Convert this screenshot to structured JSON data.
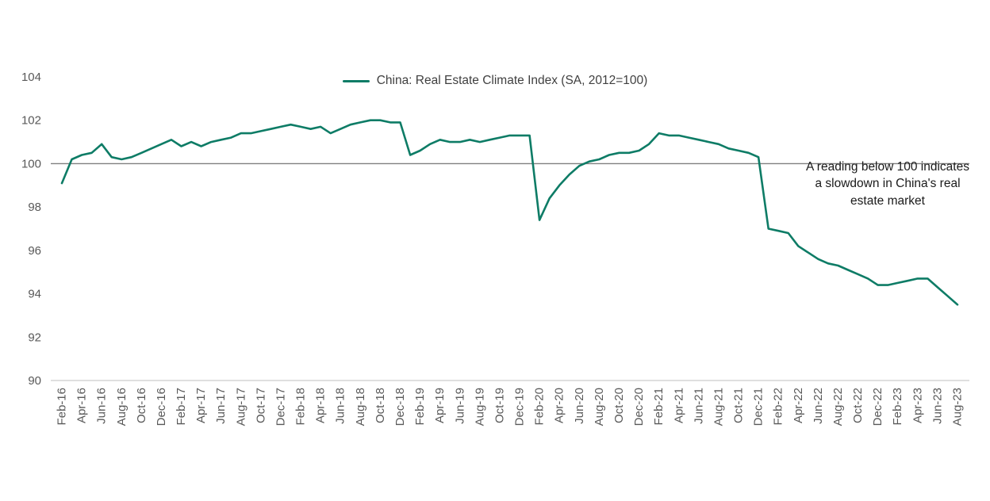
{
  "chart_data": {
    "type": "line",
    "legend": "China: Real Estate Climate Index (SA, 2012=100)",
    "annotation": "A reading below 100 indicates a slowdown in China's real estate market",
    "ylim": [
      90,
      104
    ],
    "ytick_step": 2,
    "xtick_step": 2,
    "reference_value": 100,
    "grid": "off",
    "legend_position": "top-center",
    "colors": {
      "line": "#0e7c66",
      "reference_line": "#7f7f7f",
      "axis": "#bfbfbf",
      "tick_text": "#595959"
    },
    "x": [
      "Feb-16",
      "Mar-16",
      "Apr-16",
      "May-16",
      "Jun-16",
      "Jul-16",
      "Aug-16",
      "Sep-16",
      "Oct-16",
      "Nov-16",
      "Dec-16",
      "Jan-17",
      "Feb-17",
      "Mar-17",
      "Apr-17",
      "May-17",
      "Jun-17",
      "Jul-17",
      "Aug-17",
      "Sep-17",
      "Oct-17",
      "Nov-17",
      "Dec-17",
      "Jan-18",
      "Feb-18",
      "Mar-18",
      "Apr-18",
      "May-18",
      "Jun-18",
      "Jul-18",
      "Aug-18",
      "Sep-18",
      "Oct-18",
      "Nov-18",
      "Dec-18",
      "Jan-19",
      "Feb-19",
      "Mar-19",
      "Apr-19",
      "May-19",
      "Jun-19",
      "Jul-19",
      "Aug-19",
      "Sep-19",
      "Oct-19",
      "Nov-19",
      "Dec-19",
      "Jan-20",
      "Feb-20",
      "Mar-20",
      "Apr-20",
      "May-20",
      "Jun-20",
      "Jul-20",
      "Aug-20",
      "Sep-20",
      "Oct-20",
      "Nov-20",
      "Dec-20",
      "Jan-21",
      "Feb-21",
      "Mar-21",
      "Apr-21",
      "May-21",
      "Jun-21",
      "Jul-21",
      "Aug-21",
      "Sep-21",
      "Oct-21",
      "Nov-21",
      "Dec-21",
      "Jan-22",
      "Feb-22",
      "Mar-22",
      "Apr-22",
      "May-22",
      "Jun-22",
      "Jul-22",
      "Aug-22",
      "Sep-22",
      "Oct-22",
      "Nov-22",
      "Dec-22",
      "Jan-23",
      "Feb-23",
      "Mar-23",
      "Apr-23",
      "May-23",
      "Jun-23",
      "Jul-23",
      "Aug-23"
    ],
    "values": [
      99.1,
      100.2,
      100.4,
      100.5,
      100.9,
      100.3,
      100.2,
      100.3,
      100.5,
      100.7,
      100.9,
      101.1,
      100.8,
      101.0,
      100.8,
      101.0,
      101.1,
      101.2,
      101.4,
      101.4,
      101.5,
      101.6,
      101.7,
      101.8,
      101.7,
      101.6,
      101.7,
      101.4,
      101.6,
      101.8,
      101.9,
      102.0,
      102.0,
      101.9,
      101.9,
      100.4,
      100.6,
      100.9,
      101.1,
      101.0,
      101.0,
      101.1,
      101.0,
      101.1,
      101.2,
      101.3,
      101.3,
      101.3,
      97.4,
      98.4,
      99.0,
      99.5,
      99.9,
      100.1,
      100.2,
      100.4,
      100.5,
      100.5,
      100.6,
      100.9,
      101.4,
      101.3,
      101.3,
      101.2,
      101.1,
      101.0,
      100.9,
      100.7,
      100.6,
      100.5,
      100.3,
      97.0,
      96.9,
      96.8,
      96.2,
      95.9,
      95.6,
      95.4,
      95.3,
      95.1,
      94.9,
      94.7,
      94.4,
      94.4,
      94.5,
      94.6,
      94.7,
      94.7,
      94.3,
      93.9,
      93.5
    ]
  }
}
